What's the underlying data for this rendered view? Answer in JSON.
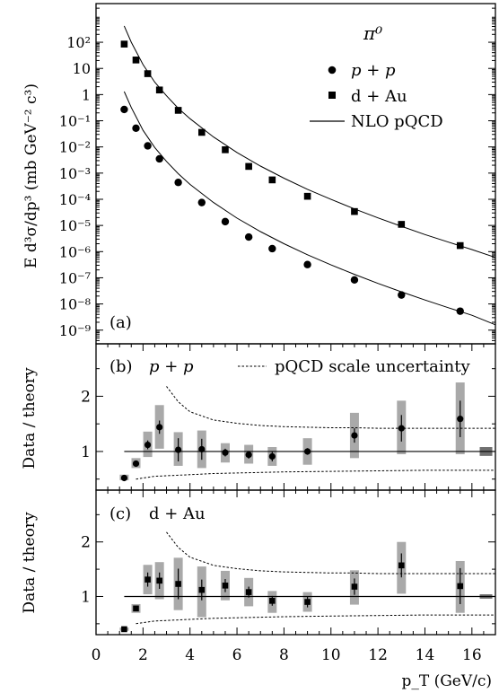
{
  "chart_data": [
    {
      "id": "a",
      "type": "scatter",
      "panel_label": "(a)",
      "title": "π⁰",
      "ylabel": "E d³σ/dp³ (mb GeV⁻² c³)",
      "ylim": [
        3e-10,
        3000
      ],
      "yscale": "log",
      "ytick_exponents": [
        -9,
        -8,
        -7,
        -6,
        -5,
        -4,
        -3,
        -2,
        -1,
        0,
        1,
        2
      ],
      "ytick_labels": [
        "10⁻⁹",
        "10⁻⁸",
        "10⁻⁷",
        "10⁻⁶",
        "10⁻⁵",
        "10⁻⁴",
        "10⁻³",
        "10⁻²",
        "10⁻¹",
        "1",
        "10",
        "10²"
      ],
      "legend_position": "top-right",
      "series": [
        {
          "name": "p + p",
          "marker": "circle",
          "x": [
            1.2,
            1.7,
            2.2,
            2.7,
            3.5,
            4.5,
            5.5,
            6.5,
            7.5,
            9.0,
            11.0,
            13.0,
            15.5
          ],
          "y": [
            0.27,
            0.052,
            0.011,
            0.0035,
            0.00044,
            7.5e-05,
            1.4e-05,
            3.6e-06,
            1.3e-06,
            3.2e-07,
            8.3e-08,
            2.2e-08,
            5.3e-09
          ]
        },
        {
          "name": "d + Au",
          "marker": "square",
          "x": [
            1.2,
            1.7,
            2.2,
            2.7,
            3.5,
            4.5,
            5.5,
            6.5,
            7.5,
            9.0,
            11.0,
            13.0,
            15.5
          ],
          "y": [
            85,
            21,
            6.3,
            1.5,
            0.25,
            0.036,
            0.0078,
            0.0018,
            0.00055,
            0.00013,
            3.4e-05,
            1.1e-05,
            1.7e-06
          ]
        },
        {
          "name": "NLO pQCD",
          "marker": "line",
          "x": [
            1.2,
            1.5,
            2,
            2.5,
            3,
            3.5,
            4,
            5,
            6,
            7,
            8,
            9,
            10,
            11,
            12,
            13,
            14,
            15,
            16,
            17
          ],
          "y": [
            1.3,
            0.32,
            0.043,
            0.0095,
            0.0028,
            0.00095,
            0.00037,
            7.5e-05,
            1.9e-05,
            5.8e-06,
            2e-06,
            7.6e-07,
            3.1e-07,
            1.35e-07,
            6.1e-08,
            2.9e-08,
            1.42e-08,
            7.2e-09,
            3.7e-09,
            1.6e-09
          ]
        },
        {
          "name": "NLO pQCD (d + Au)",
          "marker": "line",
          "x": [
            1.2,
            1.5,
            2,
            2.5,
            3,
            3.5,
            4,
            5,
            6,
            7,
            8,
            9,
            10,
            11,
            12,
            13,
            14,
            15,
            16,
            17
          ],
          "y": [
            420,
            100,
            14,
            3.0,
            0.9,
            0.3,
            0.12,
            0.024,
            0.0061,
            0.00186,
            0.00064,
            0.00024,
            9.9e-05,
            4.3e-05,
            1.95e-05,
            9.3e-06,
            4.5e-06,
            2.3e-06,
            1.2e-06,
            6e-07
          ]
        }
      ]
    },
    {
      "id": "b",
      "type": "scatter",
      "panel_label": "(b)",
      "label": "p + p",
      "ylabel": "Data / theory",
      "ylim": [
        0.3,
        2.95
      ],
      "yticks": [
        1,
        2
      ],
      "ytick_labels": [
        "1",
        "2"
      ],
      "reference_line": 1,
      "points": {
        "x": [
          1.2,
          1.7,
          2.2,
          2.7,
          3.5,
          4.5,
          5.5,
          6.5,
          7.5,
          9.0,
          11.0,
          13.0,
          15.5
        ],
        "y": [
          0.52,
          0.78,
          1.12,
          1.44,
          1.03,
          1.04,
          0.98,
          0.94,
          0.91,
          1.0,
          1.29,
          1.42,
          1.59
        ],
        "stat_lo": [
          0.49,
          0.73,
          1.04,
          1.32,
          0.82,
          0.85,
          0.91,
          0.87,
          0.82,
          0.94,
          1.16,
          1.18,
          1.26
        ],
        "stat_hi": [
          0.55,
          0.83,
          1.2,
          1.56,
          1.24,
          1.23,
          1.05,
          1.01,
          1.0,
          1.06,
          1.42,
          1.66,
          1.92
        ],
        "sys_lo": [
          0.48,
          0.7,
          0.9,
          1.05,
          0.74,
          0.7,
          0.8,
          0.78,
          0.74,
          0.76,
          0.88,
          0.95,
          0.95
        ],
        "sys_hi": [
          0.58,
          0.88,
          1.36,
          1.84,
          1.35,
          1.38,
          1.15,
          1.12,
          1.08,
          1.24,
          1.7,
          1.92,
          2.25
        ]
      },
      "scale_uncertainty_label": "pQCD scale uncertainty",
      "scale_upper": {
        "x": [
          3.0,
          3.5,
          4,
          5,
          6,
          7,
          8,
          9,
          10,
          11,
          12,
          13,
          14,
          15,
          16,
          17
        ],
        "y": [
          2.18,
          1.9,
          1.72,
          1.57,
          1.51,
          1.47,
          1.45,
          1.44,
          1.43,
          1.43,
          1.42,
          1.42,
          1.42,
          1.42,
          1.42,
          1.42
        ]
      },
      "scale_lower": {
        "x": [
          1.7,
          2,
          2.5,
          3,
          4,
          5,
          6,
          7,
          8,
          10,
          12,
          14,
          17
        ],
        "y": [
          0.5,
          0.52,
          0.55,
          0.56,
          0.58,
          0.6,
          0.61,
          0.62,
          0.63,
          0.64,
          0.65,
          0.66,
          0.66
        ]
      },
      "norm_box": {
        "x": 16.6,
        "y_lo": 0.92,
        "y_hi": 1.08
      }
    },
    {
      "id": "c",
      "type": "scatter",
      "panel_label": "(c)",
      "label": "d + Au",
      "ylabel": "Data / theory",
      "xlabel": "p_T (GeV/c)",
      "ylim": [
        0.3,
        2.95
      ],
      "xlim": [
        0,
        17
      ],
      "xticks": [
        0,
        2,
        4,
        6,
        8,
        10,
        12,
        14,
        16
      ],
      "yticks": [
        1,
        2
      ],
      "ytick_labels": [
        "1",
        "2"
      ],
      "reference_line": 1,
      "points": {
        "x": [
          1.2,
          1.7,
          2.2,
          2.7,
          3.5,
          4.5,
          5.5,
          6.5,
          7.5,
          9.0,
          11.0,
          13.0,
          15.5
        ],
        "y": [
          0.4,
          0.78,
          1.31,
          1.29,
          1.23,
          1.12,
          1.2,
          1.08,
          0.92,
          0.9,
          1.18,
          1.57,
          1.19
        ],
        "stat_lo": [
          0.38,
          0.74,
          1.18,
          1.14,
          0.95,
          0.93,
          1.08,
          0.98,
          0.83,
          0.8,
          1.03,
          1.35,
          0.86
        ],
        "stat_hi": [
          0.42,
          0.82,
          1.44,
          1.44,
          1.51,
          1.31,
          1.32,
          1.18,
          1.01,
          1.0,
          1.33,
          1.79,
          1.52
        ],
        "sys_lo": [
          0.37,
          0.7,
          1.04,
          0.95,
          0.75,
          0.62,
          0.93,
          0.82,
          0.7,
          0.72,
          0.85,
          1.05,
          0.7
        ],
        "sys_hi": [
          0.43,
          0.86,
          1.58,
          1.63,
          1.71,
          1.55,
          1.47,
          1.34,
          1.1,
          1.08,
          1.48,
          2.0,
          1.65
        ]
      },
      "scale_upper": {
        "x": [
          3.0,
          3.5,
          4,
          5,
          6,
          7,
          8,
          9,
          10,
          11,
          12,
          13,
          14,
          15,
          16,
          17
        ],
        "y": [
          2.18,
          1.9,
          1.72,
          1.57,
          1.51,
          1.47,
          1.45,
          1.44,
          1.43,
          1.43,
          1.42,
          1.42,
          1.42,
          1.42,
          1.42,
          1.42
        ]
      },
      "scale_lower": {
        "x": [
          1.7,
          2,
          2.5,
          3,
          4,
          5,
          6,
          7,
          8,
          10,
          12,
          14,
          17
        ],
        "y": [
          0.5,
          0.52,
          0.55,
          0.56,
          0.58,
          0.6,
          0.61,
          0.62,
          0.63,
          0.64,
          0.65,
          0.66,
          0.66
        ]
      },
      "norm_box": {
        "x": 16.6,
        "y_lo": 0.96,
        "y_hi": 1.04
      }
    }
  ]
}
